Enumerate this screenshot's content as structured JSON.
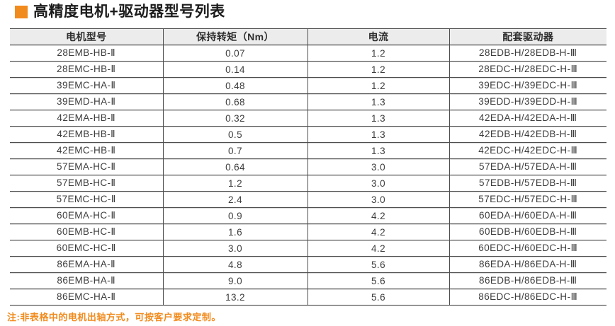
{
  "title": {
    "text": "高精度电机+驱动器型号列表"
  },
  "colors": {
    "accent_orange": "#F28B1D",
    "header_background": "#ECECEC",
    "grid_line": "#4E4E4E",
    "body_text": "#3D3D3D"
  },
  "icons": {
    "title_bullet": "orange-square-bullet"
  },
  "table": {
    "headers": [
      "电机型号",
      "保持转矩（Nm）",
      "电流",
      "配套驱动器"
    ],
    "rows": [
      [
        "28EMB-HB-Ⅱ",
        "0.07",
        "1.2",
        "28EDB-H/28EDB-H-Ⅲ"
      ],
      [
        "28EMC-HB-Ⅱ",
        "0.14",
        "1.2",
        "28EDC-H/28EDC-H-Ⅲ"
      ],
      [
        "39EMC-HA-Ⅱ",
        "0.48",
        "1.2",
        "39EDC-H/39EDC-H-Ⅲ"
      ],
      [
        "39EMD-HA-Ⅱ",
        "0.68",
        "1.3",
        "39EDD-H/39EDD-H-Ⅲ"
      ],
      [
        "42EMA-HB-Ⅱ",
        "0.32",
        "1.3",
        "42EDA-H/42EDA-H-Ⅲ"
      ],
      [
        "42EMB-HB-Ⅱ",
        "0.5",
        "1.3",
        "42EDB-H/42EDB-H-Ⅲ"
      ],
      [
        "42EMC-HB-Ⅱ",
        "0.7",
        "1.3",
        "42EDC-H/42EDC-H-Ⅲ"
      ],
      [
        "57EMA-HC-Ⅱ",
        "0.64",
        "3.0",
        "57EDA-H/57EDA-H-Ⅲ"
      ],
      [
        "57EMB-HC-Ⅱ",
        "1.2",
        "3.0",
        "57EDB-H/57EDB-H-Ⅲ"
      ],
      [
        "57EMC-HC-Ⅱ",
        "2.4",
        "3.0",
        "57EDC-H/57EDC-H-Ⅲ"
      ],
      [
        "60EMA-HC-Ⅱ",
        "0.9",
        "4.2",
        "60EDA-H/60EDA-H-Ⅲ"
      ],
      [
        "60EMB-HC-Ⅱ",
        "1.6",
        "4.2",
        "60EDB-H/60EDB-H-Ⅲ"
      ],
      [
        "60EMC-HC-Ⅱ",
        "3.0",
        "4.2",
        "60EDC-H/60EDC-H-Ⅲ"
      ],
      [
        "86EMA-HA-Ⅱ",
        "4.8",
        "5.6",
        "86EDA-H/86EDA-H-Ⅲ"
      ],
      [
        "86EMB-HA-Ⅱ",
        "9.0",
        "5.6",
        "86EDB-H/86EDB-H-Ⅲ"
      ],
      [
        "86EMC-HA-Ⅱ",
        "13.2",
        "5.6",
        "86EDC-H/86EDC-H-Ⅲ"
      ]
    ]
  },
  "footnote": {
    "text": "注:非表格中的电机出轴方式，可按客户要求定制。"
  }
}
